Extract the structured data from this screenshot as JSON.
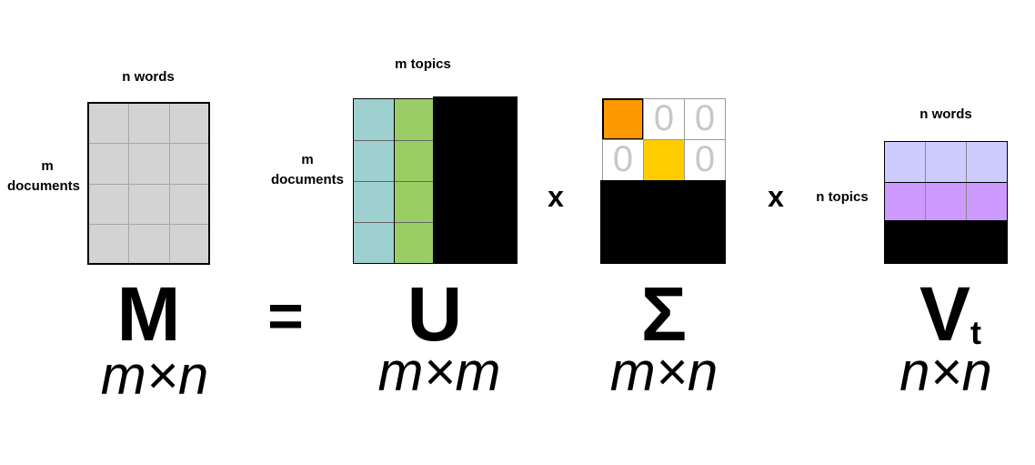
{
  "M": {
    "top_label": "n words",
    "side_label_line1": "m",
    "side_label_line2": "documents",
    "symbol": "M",
    "dimension": "m×n"
  },
  "equals": "=",
  "U": {
    "top_label": "m topics",
    "side_label_line1": "m",
    "side_label_line2": "documents",
    "symbol": "U",
    "dimension": "m×m"
  },
  "times1": "x",
  "Sigma": {
    "symbol": "Σ",
    "dimension": "m×n",
    "zero_cells": [
      "0",
      "0",
      "0",
      "0"
    ]
  },
  "times2": "x",
  "Vt": {
    "top_label": "n words",
    "side_label": "n topics",
    "symbol": "V",
    "subscript": "t",
    "dimension": "n×n"
  },
  "colors": {
    "matrix_gray": "#d3d3d3",
    "u_col1": "#9dd0ce",
    "u_col2": "#9bcd66",
    "sigma_d1": "#ff9900",
    "sigma_d2": "#ffcc00",
    "vt_row1": "#ccccff",
    "vt_row2": "#cc99ff",
    "masked": "#000000"
  }
}
